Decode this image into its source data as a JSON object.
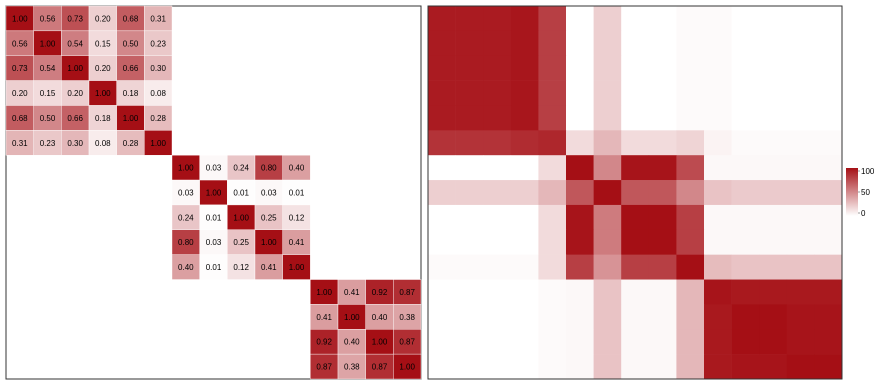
{
  "chart_data": [
    {
      "type": "heatmap",
      "title": "",
      "xlabel": "",
      "ylabel": "",
      "grid": false,
      "value_labels": true,
      "color_low": "#ffffff",
      "color_high": "#a50f15",
      "blocks": [
        {
          "matrix": [
            [
              1.0,
              0.56,
              0.73,
              0.2,
              0.68,
              0.31
            ],
            [
              0.56,
              1.0,
              0.54,
              0.15,
              0.5,
              0.23
            ],
            [
              0.73,
              0.54,
              1.0,
              0.2,
              0.66,
              0.3
            ],
            [
              0.2,
              0.15,
              0.2,
              1.0,
              0.18,
              0.08
            ],
            [
              0.68,
              0.5,
              0.66,
              0.18,
              1.0,
              0.28
            ],
            [
              0.31,
              0.23,
              0.3,
              0.08,
              0.28,
              1.0
            ]
          ],
          "labels": [
            [
              "1.00",
              "0.56",
              "0.73",
              "0.20",
              "0.68",
              "0.31"
            ],
            [
              "0.56",
              "1.00",
              "0.54",
              "0.15",
              "0.50",
              "0.23"
            ],
            [
              "0.73",
              "0.54",
              "1.00",
              "0.20",
              "0.66",
              "0.30"
            ],
            [
              "0.20",
              "0.15",
              "0.20",
              "1.00",
              "0.18",
              "0.08"
            ],
            [
              "0.68",
              "0.50",
              "0.66",
              "0.18",
              "1.00",
              "0.28"
            ],
            [
              "0.31",
              "0.23",
              "0.30",
              "0.08",
              "0.28",
              "1.00"
            ]
          ]
        },
        {
          "matrix": [
            [
              1.0,
              0.03,
              0.24,
              0.8,
              0.4
            ],
            [
              0.03,
              1.0,
              0.01,
              0.03,
              0.01
            ],
            [
              0.24,
              0.01,
              1.0,
              0.25,
              0.12
            ],
            [
              0.8,
              0.03,
              0.25,
              1.0,
              0.41
            ],
            [
              0.4,
              0.01,
              0.12,
              0.41,
              1.0
            ]
          ],
          "labels": [
            [
              "1.00",
              "0.03",
              "0.24",
              "0.80",
              "0.40"
            ],
            [
              "0.03",
              "1.00",
              "0.01",
              "0.03",
              "0.01"
            ],
            [
              "0.24",
              "0.01",
              "1.00",
              "0.25",
              "0.12"
            ],
            [
              "0.80",
              "0.03",
              "0.25",
              "1.00",
              "0.41"
            ],
            [
              "0.40",
              "0.01",
              "0.12",
              "0.41",
              "1.00"
            ]
          ]
        },
        {
          "matrix": [
            [
              1.0,
              0.41,
              0.92,
              0.87
            ],
            [
              0.41,
              1.0,
              0.4,
              0.38
            ],
            [
              0.92,
              0.4,
              1.0,
              0.87
            ],
            [
              0.87,
              0.38,
              0.87,
              1.0
            ]
          ],
          "labels": [
            [
              "1.00",
              "0.41",
              "0.92",
              "0.87"
            ],
            [
              "0.41",
              "1.00",
              "0.40",
              "0.38"
            ],
            [
              "0.92",
              "0.40",
              "1.00",
              "0.87"
            ],
            [
              "0.87",
              "0.38",
              "0.87",
              "1.00"
            ]
          ]
        }
      ]
    },
    {
      "type": "heatmap",
      "title": "",
      "xlabel": "",
      "ylabel": "",
      "grid": false,
      "value_labels": false,
      "color_low": "#ffffff",
      "color_high": "#a50f15",
      "zlim": [
        0,
        100
      ],
      "legend": {
        "position": "right",
        "ticks": [
          "100",
          "50",
          "0"
        ]
      },
      "matrix": [
        [
          95,
          95,
          95,
          97,
          80,
          0,
          20,
          0,
          0,
          2,
          2,
          0,
          0,
          0,
          0
        ],
        [
          95,
          95,
          95,
          97,
          80,
          0,
          20,
          0,
          0,
          2,
          2,
          0,
          0,
          0,
          0
        ],
        [
          95,
          95,
          95,
          97,
          80,
          0,
          20,
          0,
          0,
          2,
          2,
          0,
          0,
          0,
          0
        ],
        [
          95,
          95,
          95,
          97,
          80,
          0,
          20,
          0,
          0,
          2,
          2,
          0,
          0,
          0,
          0
        ],
        [
          95,
          95,
          95,
          97,
          80,
          0,
          20,
          0,
          0,
          2,
          2,
          0,
          0,
          0,
          0
        ],
        [
          85,
          85,
          85,
          88,
          90,
          15,
          30,
          15,
          15,
          18,
          5,
          2,
          2,
          2,
          2
        ],
        [
          0,
          0,
          0,
          0,
          15,
          100,
          50,
          98,
          98,
          75,
          3,
          3,
          3,
          3,
          3
        ],
        [
          20,
          20,
          20,
          20,
          30,
          70,
          100,
          70,
          70,
          50,
          25,
          22,
          22,
          22,
          22
        ],
        [
          0,
          0,
          0,
          0,
          15,
          98,
          55,
          100,
          100,
          80,
          3,
          3,
          3,
          3,
          3
        ],
        [
          0,
          0,
          0,
          0,
          15,
          98,
          55,
          100,
          100,
          80,
          3,
          3,
          3,
          3,
          3
        ],
        [
          2,
          2,
          2,
          2,
          15,
          80,
          45,
          80,
          80,
          100,
          28,
          25,
          25,
          25,
          25
        ],
        [
          0,
          0,
          0,
          0,
          2,
          3,
          25,
          3,
          3,
          30,
          98,
          96,
          96,
          96,
          96
        ],
        [
          0,
          0,
          0,
          0,
          2,
          3,
          25,
          3,
          3,
          30,
          96,
          100,
          100,
          98,
          98
        ],
        [
          0,
          0,
          0,
          0,
          2,
          3,
          25,
          3,
          3,
          30,
          96,
          100,
          100,
          98,
          98
        ],
        [
          0,
          0,
          0,
          0,
          2,
          3,
          25,
          3,
          3,
          30,
          96,
          98,
          98,
          100,
          100
        ]
      ]
    }
  ]
}
